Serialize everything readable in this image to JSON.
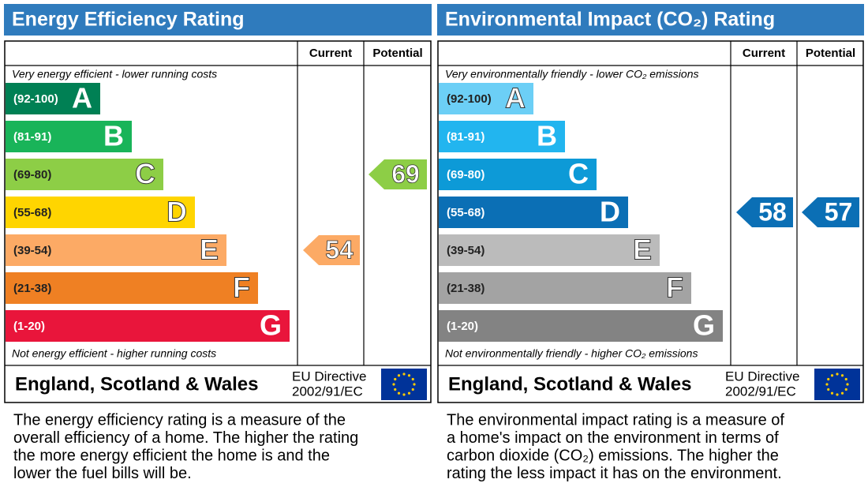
{
  "panels": [
    {
      "title": "Energy Efficiency Rating",
      "header": {
        "current": "Current",
        "potential": "Potential"
      },
      "top_note": "Very energy efficient - lower running costs",
      "bottom_note": "Not energy efficient - higher running costs",
      "bands": [
        {
          "range": "(92-100)",
          "letter": "A",
          "color": "#008054"
        },
        {
          "range": "(81-91)",
          "letter": "B",
          "color": "#19b459"
        },
        {
          "range": "(69-80)",
          "letter": "C",
          "color": "#8dce46"
        },
        {
          "range": "(55-68)",
          "letter": "D",
          "color": "#ffd500"
        },
        {
          "range": "(39-54)",
          "letter": "E",
          "color": "#fcaa65"
        },
        {
          "range": "(21-38)",
          "letter": "F",
          "color": "#ef8023"
        },
        {
          "range": "(1-20)",
          "letter": "G",
          "color": "#e9153b"
        }
      ],
      "current": 54,
      "potential": 69,
      "footer": {
        "region": "England, Scotland & Wales",
        "directive_1": "EU Directive",
        "directive_2": "2002/91/EC"
      },
      "description": [
        "The energy efficiency rating is a measure of the",
        "overall efficiency of a home. The higher the rating",
        "the more energy efficient the home is and the",
        "lower the fuel bills will be."
      ]
    },
    {
      "title": "Environmental Impact (CO₂) Rating",
      "header": {
        "current": "Current",
        "potential": "Potential"
      },
      "top_note": "Very environmentally friendly - lower CO₂ emissions",
      "bottom_note": "Not environmentally friendly - higher CO₂ emissions",
      "bands": [
        {
          "range": "(92-100)",
          "letter": "A",
          "color": "#6ccff6"
        },
        {
          "range": "(81-91)",
          "letter": "B",
          "color": "#22b5ef"
        },
        {
          "range": "(69-80)",
          "letter": "C",
          "color": "#0d9ad7"
        },
        {
          "range": "(55-68)",
          "letter": "D",
          "color": "#0b6fb5"
        },
        {
          "range": "(39-54)",
          "letter": "E",
          "color": "#bbbbbb"
        },
        {
          "range": "(21-38)",
          "letter": "F",
          "color": "#a3a3a3"
        },
        {
          "range": "(1-20)",
          "letter": "G",
          "color": "#838383"
        }
      ],
      "current": 58,
      "potential": 57,
      "footer": {
        "region": "England, Scotland & Wales",
        "directive_1": "EU Directive",
        "directive_2": "2002/91/EC"
      },
      "description": [
        "The environmental impact rating is a measure of",
        "a home's impact on the environment in terms of",
        "carbon dioxide (CO₂) emissions. The higher the",
        "rating the less impact it has on the environment."
      ]
    }
  ]
}
